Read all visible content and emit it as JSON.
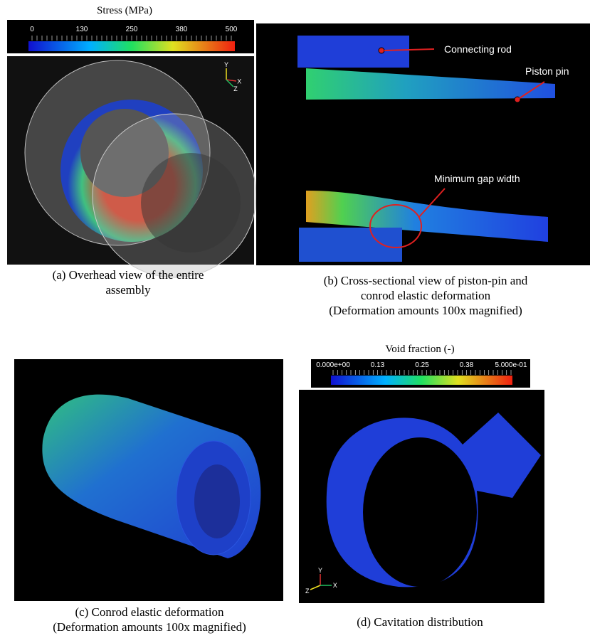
{
  "panel_a": {
    "colorbar_title": "Stress  (MPa)",
    "colorbar_ticks": [
      "0",
      "130",
      "250",
      "380",
      "500"
    ],
    "axes": [
      "Y",
      "X",
      "Z"
    ],
    "caption": [
      "(a) Overhead view of the entire",
      "assembly"
    ]
  },
  "panel_b": {
    "labels": [
      "Connecting rod",
      "Piston pin",
      "Minimum gap width"
    ],
    "caption": [
      "(b) Cross-sectional view of piston-pin and",
      "conrod elastic deformation",
      "(Deformation amounts 100x magnified)"
    ]
  },
  "panel_c": {
    "caption": [
      "(c) Conrod elastic deformation",
      "(Deformation amounts 100x magnified)"
    ]
  },
  "panel_d": {
    "colorbar_title": "Void fraction (-)",
    "colorbar_ticks": [
      "0.000e+00",
      "0.13",
      "0.25",
      "0.38",
      "5.000e-01"
    ],
    "axes": [
      "Z",
      "Y",
      "X"
    ],
    "caption": [
      "(d) Cavitation distribution"
    ]
  }
}
